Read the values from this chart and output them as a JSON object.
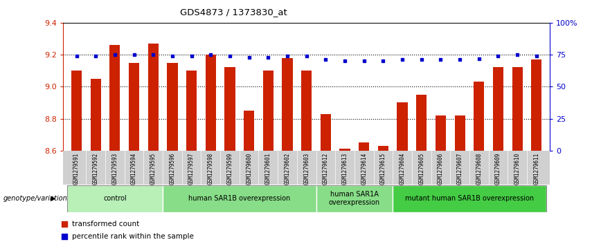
{
  "title": "GDS4873 / 1373830_at",
  "samples": [
    "GSM1279591",
    "GSM1279592",
    "GSM1279593",
    "GSM1279594",
    "GSM1279595",
    "GSM1279596",
    "GSM1279597",
    "GSM1279598",
    "GSM1279599",
    "GSM1279600",
    "GSM1279601",
    "GSM1279602",
    "GSM1279603",
    "GSM1279612",
    "GSM1279613",
    "GSM1279614",
    "GSM1279615",
    "GSM1279604",
    "GSM1279605",
    "GSM1279606",
    "GSM1279607",
    "GSM1279608",
    "GSM1279609",
    "GSM1279610",
    "GSM1279611"
  ],
  "bar_values": [
    9.1,
    9.05,
    9.26,
    9.15,
    9.27,
    9.15,
    9.1,
    9.2,
    9.12,
    8.85,
    9.1,
    9.18,
    9.1,
    8.83,
    8.61,
    8.65,
    8.63,
    8.9,
    8.95,
    8.82,
    8.82,
    9.03,
    9.12,
    9.12,
    9.17
  ],
  "percentile_values": [
    74,
    74,
    75,
    75,
    75,
    74,
    74,
    75,
    74,
    73,
    73,
    74,
    74,
    71,
    70,
    70,
    70,
    71,
    71,
    71,
    71,
    72,
    74,
    75,
    74
  ],
  "groups": [
    {
      "label": "control",
      "start": 0,
      "end": 5,
      "color": "#b8f0b8"
    },
    {
      "label": "human SAR1B overexpression",
      "start": 5,
      "end": 13,
      "color": "#88dd88"
    },
    {
      "label": "human SAR1A\noverexpression",
      "start": 13,
      "end": 17,
      "color": "#88dd88"
    },
    {
      "label": "mutant human SAR1B overexpression",
      "start": 17,
      "end": 25,
      "color": "#44cc44"
    }
  ],
  "ylim": [
    8.6,
    9.4
  ],
  "y2lim": [
    0,
    100
  ],
  "bar_color": "#cc2200",
  "dot_color": "#0000cc",
  "background_color": "#ffffff",
  "gridline_color": "#000000",
  "yticks": [
    8.6,
    8.8,
    9.0,
    9.2,
    9.4
  ],
  "y2ticks": [
    0,
    25,
    50,
    75,
    100
  ],
  "y2ticklabels": [
    "0",
    "25",
    "50",
    "75",
    "100%"
  ],
  "legend_items": [
    {
      "label": "transformed count",
      "color": "#cc2200"
    },
    {
      "label": "percentile rank within the sample",
      "color": "#0000cc"
    }
  ],
  "genotype_label": "genotype/variation",
  "left_yaxis_color": "#cc2200",
  "right_yaxis_color": "#0000cc",
  "xtick_bg_color": "#d0d0d0",
  "bar_width": 0.55
}
